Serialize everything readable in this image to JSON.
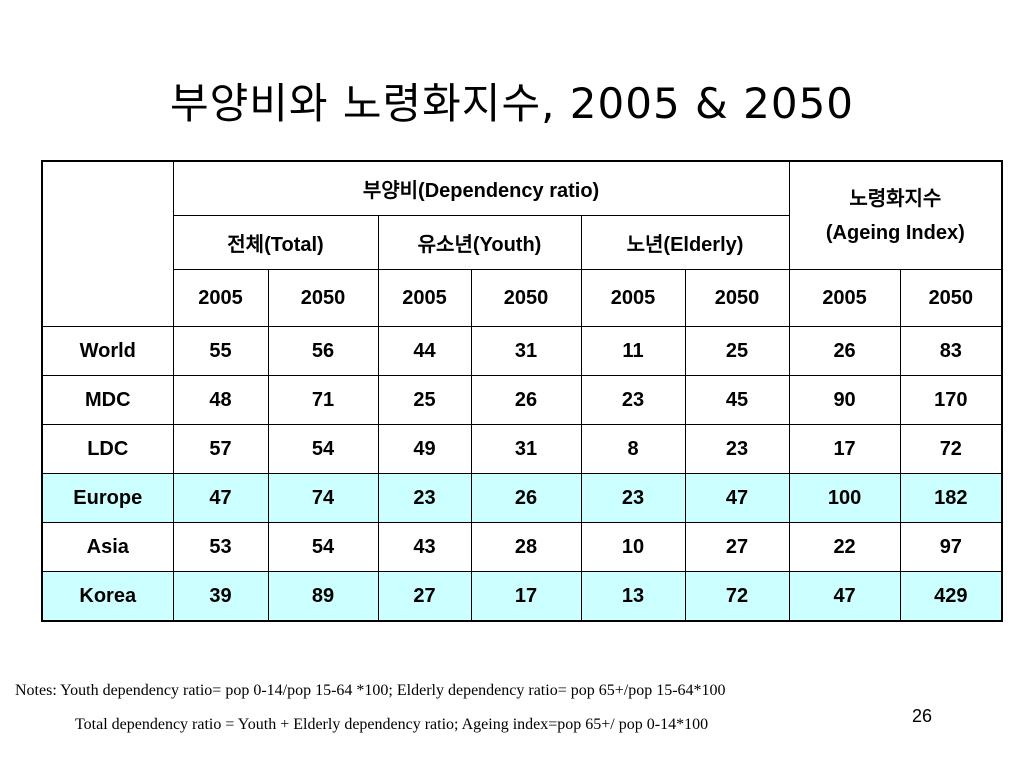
{
  "title": "부양비와 노령화지수, 2005 & 2050",
  "table": {
    "group_dependency": "부양비(Dependency ratio)",
    "group_ageing_line1": "노령화지수",
    "group_ageing_line2": "(Ageing Index)",
    "sub_total": "전체(Total)",
    "sub_youth": "유소년(Youth)",
    "sub_elderly": "노년(Elderly)",
    "years": [
      "2005",
      "2050",
      "2005",
      "2050",
      "2005",
      "2050",
      "2005",
      "2050"
    ],
    "rows": [
      {
        "label": "World",
        "values": [
          "55",
          "56",
          "44",
          "31",
          "11",
          "25",
          "26",
          "83"
        ],
        "highlight": false
      },
      {
        "label": "MDC",
        "values": [
          "48",
          "71",
          "25",
          "26",
          "23",
          "45",
          "90",
          "170"
        ],
        "highlight": false
      },
      {
        "label": "LDC",
        "values": [
          "57",
          "54",
          "49",
          "31",
          "8",
          "23",
          "17",
          "72"
        ],
        "highlight": false
      },
      {
        "label": "Europe",
        "values": [
          "47",
          "74",
          "23",
          "26",
          "23",
          "47",
          "100",
          "182"
        ],
        "highlight": true
      },
      {
        "label": "Asia",
        "values": [
          "53",
          "54",
          "43",
          "28",
          "10",
          "27",
          "22",
          "97"
        ],
        "highlight": false
      },
      {
        "label": "Korea",
        "values": [
          "39",
          "89",
          "27",
          "17",
          "13",
          "72",
          "47",
          "429"
        ],
        "highlight": true
      }
    ]
  },
  "notes": {
    "line1": "Notes:  Youth dependency ratio= pop 0-14/pop 15-64 *100; Elderly dependency ratio= pop 65+/pop 15-64*100",
    "line2": "Total dependency ratio = Youth + Elderly dependency ratio; Ageing index=pop 65+/ pop 0-14*100"
  },
  "page_number": "26",
  "colors": {
    "highlight_row": "#ccffff"
  }
}
